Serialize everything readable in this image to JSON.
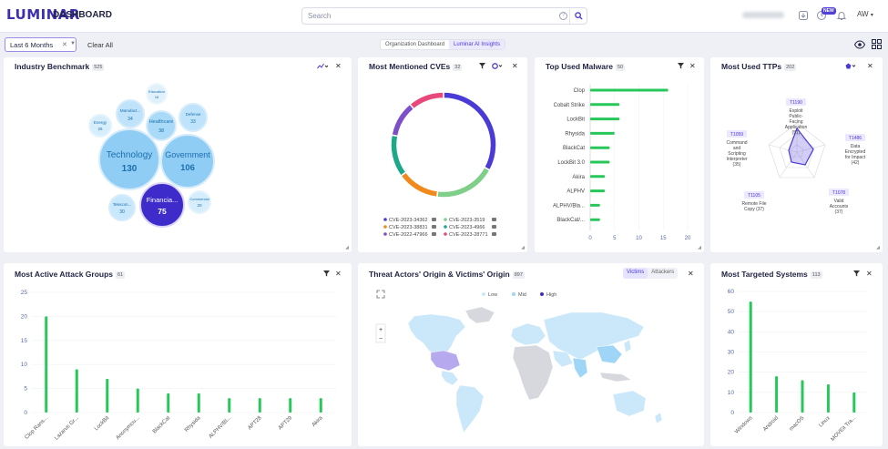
{
  "app": {
    "logo": "LUMINAR",
    "title": "DASHBOARD",
    "search_placeholder": "Search",
    "new_badge": "NEW",
    "user_initials": "AW"
  },
  "filters": {
    "time_range": "Last 6 Months",
    "clear_all": "Clear All",
    "tabs": [
      {
        "label": "Organization Dashboard",
        "active": false
      },
      {
        "label": "Luminar AI Insights",
        "active": true
      }
    ]
  },
  "colors": {
    "accent": "#4b3bd6",
    "bubble_light": "#bfe3fb",
    "bubble_mid": "#8fcdf5",
    "bar_green": "#27c75a",
    "map_low": "#cbe8fa",
    "map_mid": "#9fd6f7",
    "map_high": "#3d2cc9"
  },
  "cards": {
    "industry": {
      "title": "Industry Benchmark",
      "count": "525",
      "bubbles": [
        {
          "label": "Technology",
          "value": "130"
        },
        {
          "label": "Government",
          "value": "106"
        },
        {
          "label": "Financia...",
          "value": "75"
        },
        {
          "label": "Healthcare",
          "value": "38"
        },
        {
          "label": "Manufact...",
          "value": "34"
        },
        {
          "label": "Defense",
          "value": "33"
        },
        {
          "label": "Telecom...",
          "value": "30"
        },
        {
          "label": "Energy",
          "value": "26"
        },
        {
          "label": "Commercial",
          "value": "20"
        },
        {
          "label": "Education",
          "value": "18"
        }
      ]
    },
    "cves": {
      "title": "Most Mentioned CVEs",
      "count": "32",
      "legend": [
        {
          "label": "CVE-2023-34362",
          "color": "#4b3bd6"
        },
        {
          "label": "CVE-2023-3519",
          "color": "#7fcf8a"
        },
        {
          "label": "CVE-2023-38831",
          "color": "#f08a1c"
        },
        {
          "label": "CVE-2023-4966",
          "color": "#1ea88a"
        },
        {
          "label": "CVE-2022-47966",
          "color": "#7d4fc9"
        },
        {
          "label": "CVE-2023-28771",
          "color": "#e8487a"
        }
      ]
    },
    "malware": {
      "title": "Top Used Malware",
      "count": "50"
    },
    "ttps": {
      "title": "Most Used TTPs",
      "count": "202",
      "nodes": [
        {
          "id": "T1190",
          "lines": [
            "Exploit",
            "Public-",
            "Facing",
            "Application",
            "(51)"
          ]
        },
        {
          "id": "T1486",
          "lines": [
            "Data",
            "Encrypted",
            "for Impact",
            "(42)"
          ]
        },
        {
          "id": "T1078",
          "lines": [
            "Valid",
            "Accounts",
            "(37)"
          ]
        },
        {
          "id": "T1105",
          "lines": [
            "Remote File",
            "Copy (37)"
          ]
        },
        {
          "id": "T1059",
          "lines": [
            "Command",
            "and",
            "Scripting",
            "Interpreter",
            "(35)"
          ]
        }
      ]
    },
    "groups": {
      "title": "Most Active Attack Groups",
      "count": "61"
    },
    "map": {
      "title": "Threat Actors' Origin & Victims' Origin",
      "count": "897",
      "toggle": [
        "Victims",
        "Attackers"
      ],
      "legend": [
        "Low",
        "Mid",
        "High"
      ],
      "zoom_in": "+",
      "zoom_out": "−"
    },
    "systems": {
      "title": "Most Targeted Systems",
      "count": "113"
    }
  },
  "chart_data": [
    {
      "type": "pie",
      "title": "Most Mentioned CVEs",
      "categories": [
        "CVE-2023-34362",
        "CVE-2023-3519",
        "CVE-2023-38831",
        "CVE-2023-4966",
        "CVE-2022-47966",
        "CVE-2023-28771"
      ],
      "values": [
        33,
        19,
        13,
        13,
        11,
        11
      ]
    },
    {
      "type": "bar",
      "title": "Top Used Malware",
      "orientation": "horizontal",
      "categories": [
        "Clop",
        "Cobalt Strike",
        "LockBit",
        "Rhysida",
        "BlackCat",
        "LockBit 3.0",
        "Akira",
        "ALPHV",
        "ALPHV/Bla...",
        "BlackCat/..."
      ],
      "values": [
        16,
        6,
        6,
        5,
        4,
        4,
        3,
        3,
        2,
        2
      ],
      "xticks": [
        "0",
        "5",
        "10",
        "15",
        "20"
      ],
      "xlim": [
        0,
        20
      ]
    },
    {
      "type": "bar",
      "title": "Most Active Attack Groups",
      "categories": [
        "Clop Rans...",
        "Lazarus Gr...",
        "LockBit",
        "Anonymou...",
        "BlackCat",
        "Rhysida",
        "ALPHV/Bl...",
        "APT28",
        "APT29",
        "Akira"
      ],
      "values": [
        20,
        9,
        7,
        5,
        4,
        4,
        3,
        3,
        3,
        3
      ],
      "yticks": [
        "0",
        "5",
        "10",
        "15",
        "20",
        "25"
      ],
      "ylim": [
        0,
        25
      ]
    },
    {
      "type": "bar",
      "title": "Most Targeted Systems",
      "categories": [
        "Windows",
        "Android",
        "macOS",
        "Linux",
        "MOVEit Tra..."
      ],
      "values": [
        55,
        18,
        16,
        14,
        10
      ],
      "yticks": [
        "0",
        "10",
        "20",
        "30",
        "40",
        "50",
        "60"
      ],
      "ylim": [
        0,
        60
      ]
    }
  ]
}
